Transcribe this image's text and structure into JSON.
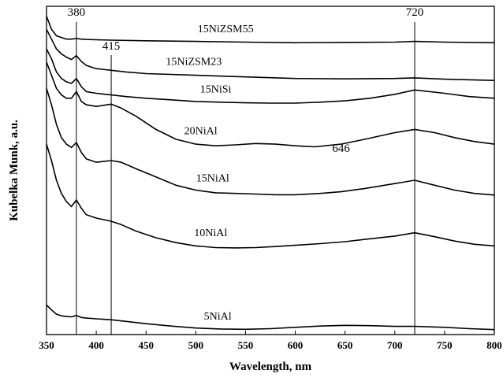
{
  "chart_data": {
    "type": "line",
    "title": "",
    "xlabel": "Wavelength, nm",
    "ylabel": "Kubelka Munk, a.u.",
    "xlim": [
      350,
      800
    ],
    "x_ticks": [
      350,
      400,
      450,
      500,
      550,
      600,
      650,
      700,
      750,
      800
    ],
    "x_tick_labels": [
      "350",
      "400",
      "450",
      "500",
      "550",
      "600",
      "650",
      "700",
      "750",
      "800"
    ],
    "y_ticks_shown": false,
    "grid": false,
    "legend": "none (series labelled directly on curves)",
    "reference_lines": [
      {
        "x": 380,
        "label": "380"
      },
      {
        "x": 415,
        "label": "415"
      },
      {
        "x": 720,
        "label": "720"
      }
    ],
    "annotations": [
      {
        "text": "646",
        "x": 646
      }
    ],
    "series": [
      {
        "name": "15NiZSM55",
        "x": [
          350,
          355,
          360,
          365,
          370,
          375,
          380,
          385,
          390,
          400,
          415,
          450,
          500,
          550,
          600,
          650,
          700,
          720,
          750,
          800
        ],
        "y": [
          0.97,
          0.93,
          0.91,
          0.905,
          0.9,
          0.9,
          0.902,
          0.9,
          0.899,
          0.898,
          0.897,
          0.895,
          0.893,
          0.891,
          0.889,
          0.89,
          0.891,
          0.893,
          0.891,
          0.889
        ]
      },
      {
        "name": "15NiZSM23",
        "x": [
          350,
          355,
          360,
          365,
          370,
          375,
          380,
          385,
          390,
          400,
          415,
          430,
          450,
          500,
          550,
          600,
          650,
          700,
          720,
          750,
          800
        ],
        "y": [
          0.93,
          0.9,
          0.87,
          0.855,
          0.845,
          0.838,
          0.85,
          0.832,
          0.82,
          0.81,
          0.805,
          0.8,
          0.795,
          0.79,
          0.785,
          0.78,
          0.779,
          0.78,
          0.782,
          0.778,
          0.774
        ]
      },
      {
        "name": "15NiSi",
        "x": [
          350,
          355,
          360,
          365,
          370,
          375,
          380,
          385,
          390,
          400,
          415,
          430,
          450,
          475,
          500,
          525,
          550,
          575,
          600,
          625,
          650,
          675,
          700,
          720,
          750,
          775,
          800
        ],
        "y": [
          0.87,
          0.84,
          0.8,
          0.78,
          0.77,
          0.765,
          0.78,
          0.755,
          0.74,
          0.735,
          0.73,
          0.725,
          0.72,
          0.715,
          0.71,
          0.708,
          0.706,
          0.705,
          0.705,
          0.708,
          0.712,
          0.72,
          0.732,
          0.745,
          0.735,
          0.725,
          0.72
        ]
      },
      {
        "name": "20NiAl",
        "x": [
          350,
          355,
          360,
          365,
          370,
          375,
          380,
          385,
          390,
          400,
          415,
          425,
          440,
          460,
          480,
          500,
          520,
          540,
          560,
          580,
          600,
          620,
          646,
          670,
          700,
          720,
          740,
          760,
          780,
          800
        ],
        "y": [
          0.83,
          0.79,
          0.75,
          0.73,
          0.72,
          0.72,
          0.74,
          0.71,
          0.7,
          0.695,
          0.702,
          0.69,
          0.665,
          0.625,
          0.595,
          0.58,
          0.575,
          0.578,
          0.582,
          0.58,
          0.575,
          0.572,
          0.58,
          0.595,
          0.615,
          0.625,
          0.615,
          0.6,
          0.588,
          0.58
        ]
      },
      {
        "name": "15NiAl",
        "x": [
          350,
          355,
          360,
          365,
          370,
          375,
          380,
          385,
          390,
          400,
          415,
          425,
          440,
          460,
          480,
          500,
          520,
          540,
          560,
          580,
          600,
          625,
          646,
          670,
          700,
          720,
          740,
          760,
          780,
          800
        ],
        "y": [
          0.75,
          0.7,
          0.64,
          0.6,
          0.58,
          0.57,
          0.585,
          0.555,
          0.535,
          0.525,
          0.53,
          0.525,
          0.505,
          0.48,
          0.455,
          0.44,
          0.432,
          0.43,
          0.428,
          0.426,
          0.426,
          0.43,
          0.435,
          0.445,
          0.46,
          0.47,
          0.455,
          0.44,
          0.43,
          0.425
        ]
      },
      {
        "name": "10NiAl",
        "x": [
          350,
          355,
          360,
          365,
          370,
          375,
          380,
          385,
          390,
          400,
          415,
          425,
          440,
          460,
          480,
          500,
          520,
          540,
          560,
          580,
          600,
          625,
          650,
          670,
          700,
          720,
          740,
          760,
          780,
          800
        ],
        "y": [
          0.58,
          0.53,
          0.47,
          0.43,
          0.405,
          0.39,
          0.41,
          0.385,
          0.365,
          0.355,
          0.345,
          0.335,
          0.315,
          0.295,
          0.28,
          0.27,
          0.265,
          0.264,
          0.265,
          0.268,
          0.272,
          0.277,
          0.283,
          0.29,
          0.3,
          0.31,
          0.298,
          0.285,
          0.275,
          0.27
        ]
      },
      {
        "name": "5NiAl",
        "x": [
          350,
          355,
          360,
          365,
          370,
          375,
          380,
          385,
          390,
          400,
          415,
          430,
          450,
          475,
          500,
          525,
          550,
          575,
          600,
          625,
          650,
          675,
          700,
          720,
          750,
          775,
          800
        ],
        "y": [
          0.09,
          0.075,
          0.062,
          0.057,
          0.055,
          0.054,
          0.058,
          0.052,
          0.05,
          0.048,
          0.045,
          0.04,
          0.033,
          0.026,
          0.02,
          0.017,
          0.016,
          0.018,
          0.022,
          0.026,
          0.028,
          0.027,
          0.025,
          0.025,
          0.022,
          0.018,
          0.015
        ]
      }
    ]
  }
}
